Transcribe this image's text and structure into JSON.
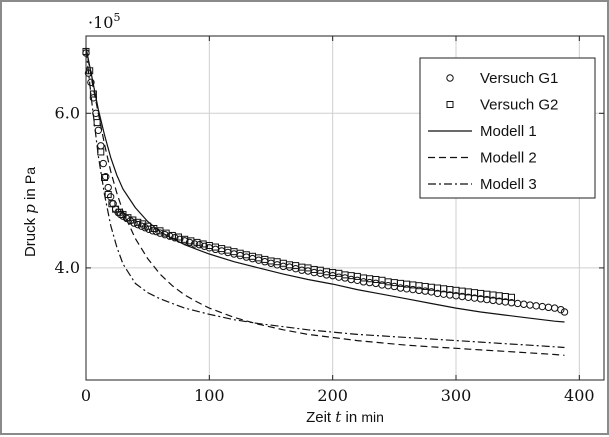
{
  "chart_data": {
    "type": "line",
    "title": "",
    "xlabel": {
      "prefix": "Zeit",
      "symbol": "t",
      "mid": "in",
      "unit": "min"
    },
    "ylabel": {
      "prefix": "Druck",
      "symbol": "p",
      "mid": "in",
      "unit": "Pa"
    },
    "y_scale_label": "·10",
    "y_scale_exponent": "5",
    "xlim": [
      0,
      420
    ],
    "ylim": [
      2.55,
      7.0
    ],
    "xticks": [
      0,
      100,
      200,
      300,
      400
    ],
    "yticks": [
      4.0,
      6.0
    ],
    "xtick_labels": [
      "0",
      "100",
      "200",
      "300",
      "400"
    ],
    "ytick_labels": [
      "4.0",
      "6.0"
    ],
    "grid": true,
    "legend_position": "top-right",
    "series": [
      {
        "name": "Versuch G1",
        "kind": "markers",
        "marker": "circle",
        "x": [
          0,
          2,
          4,
          6,
          8,
          10,
          12,
          14,
          16,
          18,
          20,
          22,
          24,
          26,
          28,
          30,
          33,
          36,
          39,
          42,
          45,
          48,
          51,
          54,
          57,
          60,
          64,
          68,
          72,
          76,
          80,
          84,
          88,
          92,
          96,
          100,
          105,
          110,
          115,
          120,
          125,
          130,
          135,
          140,
          145,
          150,
          155,
          160,
          165,
          170,
          175,
          180,
          185,
          190,
          195,
          200,
          205,
          210,
          215,
          220,
          225,
          230,
          235,
          240,
          245,
          250,
          255,
          260,
          265,
          270,
          275,
          280,
          285,
          290,
          295,
          300,
          305,
          310,
          315,
          320,
          325,
          330,
          335,
          340,
          345,
          350,
          355,
          360,
          365,
          370,
          375,
          380,
          385,
          388
        ],
        "y": [
          6.78,
          6.52,
          6.4,
          6.2,
          6.0,
          5.78,
          5.58,
          5.35,
          5.18,
          5.04,
          4.92,
          4.83,
          4.76,
          4.72,
          4.69,
          4.67,
          4.64,
          4.61,
          4.58,
          4.56,
          4.54,
          4.52,
          4.5,
          4.48,
          4.47,
          4.45,
          4.43,
          4.41,
          4.39,
          4.37,
          4.35,
          4.33,
          4.31,
          4.3,
          4.28,
          4.26,
          4.24,
          4.22,
          4.2,
          4.18,
          4.16,
          4.14,
          4.12,
          4.1,
          4.08,
          4.06,
          4.04,
          4.02,
          4.01,
          3.99,
          3.97,
          3.96,
          3.94,
          3.93,
          3.91,
          3.9,
          3.88,
          3.87,
          3.85,
          3.84,
          3.82,
          3.81,
          3.8,
          3.78,
          3.77,
          3.76,
          3.74,
          3.73,
          3.72,
          3.71,
          3.7,
          3.69,
          3.67,
          3.66,
          3.65,
          3.64,
          3.63,
          3.62,
          3.61,
          3.6,
          3.59,
          3.58,
          3.57,
          3.56,
          3.55,
          3.54,
          3.53,
          3.52,
          3.51,
          3.5,
          3.49,
          3.48,
          3.46,
          3.43
        ]
      },
      {
        "name": "Versuch G2",
        "kind": "markers",
        "marker": "square",
        "x": [
          0,
          3,
          6,
          9,
          12,
          15,
          18,
          21,
          24,
          27,
          30,
          34,
          38,
          42,
          46,
          50,
          55,
          60,
          65,
          70,
          75,
          80,
          85,
          90,
          95,
          100,
          105,
          110,
          115,
          120,
          125,
          130,
          135,
          140,
          145,
          150,
          155,
          160,
          165,
          170,
          175,
          180,
          185,
          190,
          195,
          200,
          205,
          210,
          215,
          220,
          225,
          230,
          235,
          240,
          245,
          250,
          255,
          260,
          265,
          270,
          275,
          280,
          285,
          290,
          295,
          300,
          305,
          310,
          315,
          320,
          325,
          330,
          335,
          340,
          345
        ],
        "y": [
          6.8,
          6.55,
          6.25,
          5.88,
          5.5,
          5.17,
          4.95,
          4.83,
          4.76,
          4.72,
          4.69,
          4.65,
          4.62,
          4.59,
          4.57,
          4.54,
          4.51,
          4.48,
          4.45,
          4.42,
          4.4,
          4.37,
          4.35,
          4.33,
          4.31,
          4.29,
          4.27,
          4.25,
          4.23,
          4.21,
          4.19,
          4.17,
          4.15,
          4.13,
          4.11,
          4.09,
          4.08,
          4.06,
          4.04,
          4.03,
          4.01,
          4.0,
          3.98,
          3.97,
          3.95,
          3.94,
          3.93,
          3.91,
          3.9,
          3.89,
          3.87,
          3.86,
          3.85,
          3.84,
          3.82,
          3.81,
          3.8,
          3.79,
          3.78,
          3.77,
          3.76,
          3.75,
          3.74,
          3.73,
          3.72,
          3.71,
          3.7,
          3.69,
          3.68,
          3.67,
          3.66,
          3.65,
          3.64,
          3.63,
          3.62
        ]
      },
      {
        "name": "Modell 1",
        "kind": "line",
        "dash": "solid",
        "x": [
          0,
          5,
          10,
          15,
          20,
          25,
          30,
          40,
          50,
          60,
          70,
          80,
          90,
          100,
          120,
          140,
          160,
          180,
          200,
          220,
          240,
          260,
          280,
          300,
          320,
          340,
          360,
          380,
          388
        ],
        "y": [
          6.85,
          6.45,
          6.05,
          5.72,
          5.43,
          5.2,
          5.02,
          4.78,
          4.6,
          4.47,
          4.38,
          4.3,
          4.24,
          4.18,
          4.08,
          4.0,
          3.92,
          3.85,
          3.79,
          3.72,
          3.66,
          3.6,
          3.54,
          3.48,
          3.43,
          3.39,
          3.35,
          3.31,
          3.3
        ]
      },
      {
        "name": "Modell 2",
        "kind": "line",
        "dash": "dashed",
        "x": [
          0,
          5,
          10,
          15,
          20,
          25,
          30,
          40,
          50,
          60,
          70,
          80,
          90,
          100,
          120,
          140,
          160,
          180,
          200,
          220,
          240,
          260,
          280,
          300,
          320,
          340,
          360,
          380,
          388
        ],
        "y": [
          6.85,
          6.4,
          6.0,
          5.6,
          5.25,
          4.97,
          4.73,
          4.38,
          4.12,
          3.92,
          3.77,
          3.65,
          3.56,
          3.48,
          3.36,
          3.27,
          3.2,
          3.14,
          3.1,
          3.06,
          3.03,
          3.0,
          2.98,
          2.96,
          2.94,
          2.92,
          2.9,
          2.88,
          2.87
        ]
      },
      {
        "name": "Modell 3",
        "kind": "line",
        "dash": "dashdot",
        "x": [
          0,
          5,
          10,
          15,
          20,
          25,
          30,
          40,
          50,
          60,
          70,
          80,
          90,
          100,
          120,
          140,
          160,
          180,
          200,
          220,
          240,
          260,
          280,
          300,
          320,
          340,
          360,
          380,
          388
        ],
        "y": [
          6.82,
          6.1,
          5.45,
          4.95,
          4.55,
          4.27,
          4.05,
          3.8,
          3.68,
          3.6,
          3.54,
          3.48,
          3.44,
          3.4,
          3.33,
          3.28,
          3.24,
          3.2,
          3.17,
          3.14,
          3.12,
          3.1,
          3.08,
          3.06,
          3.04,
          3.02,
          3.0,
          2.98,
          2.97
        ]
      }
    ]
  }
}
